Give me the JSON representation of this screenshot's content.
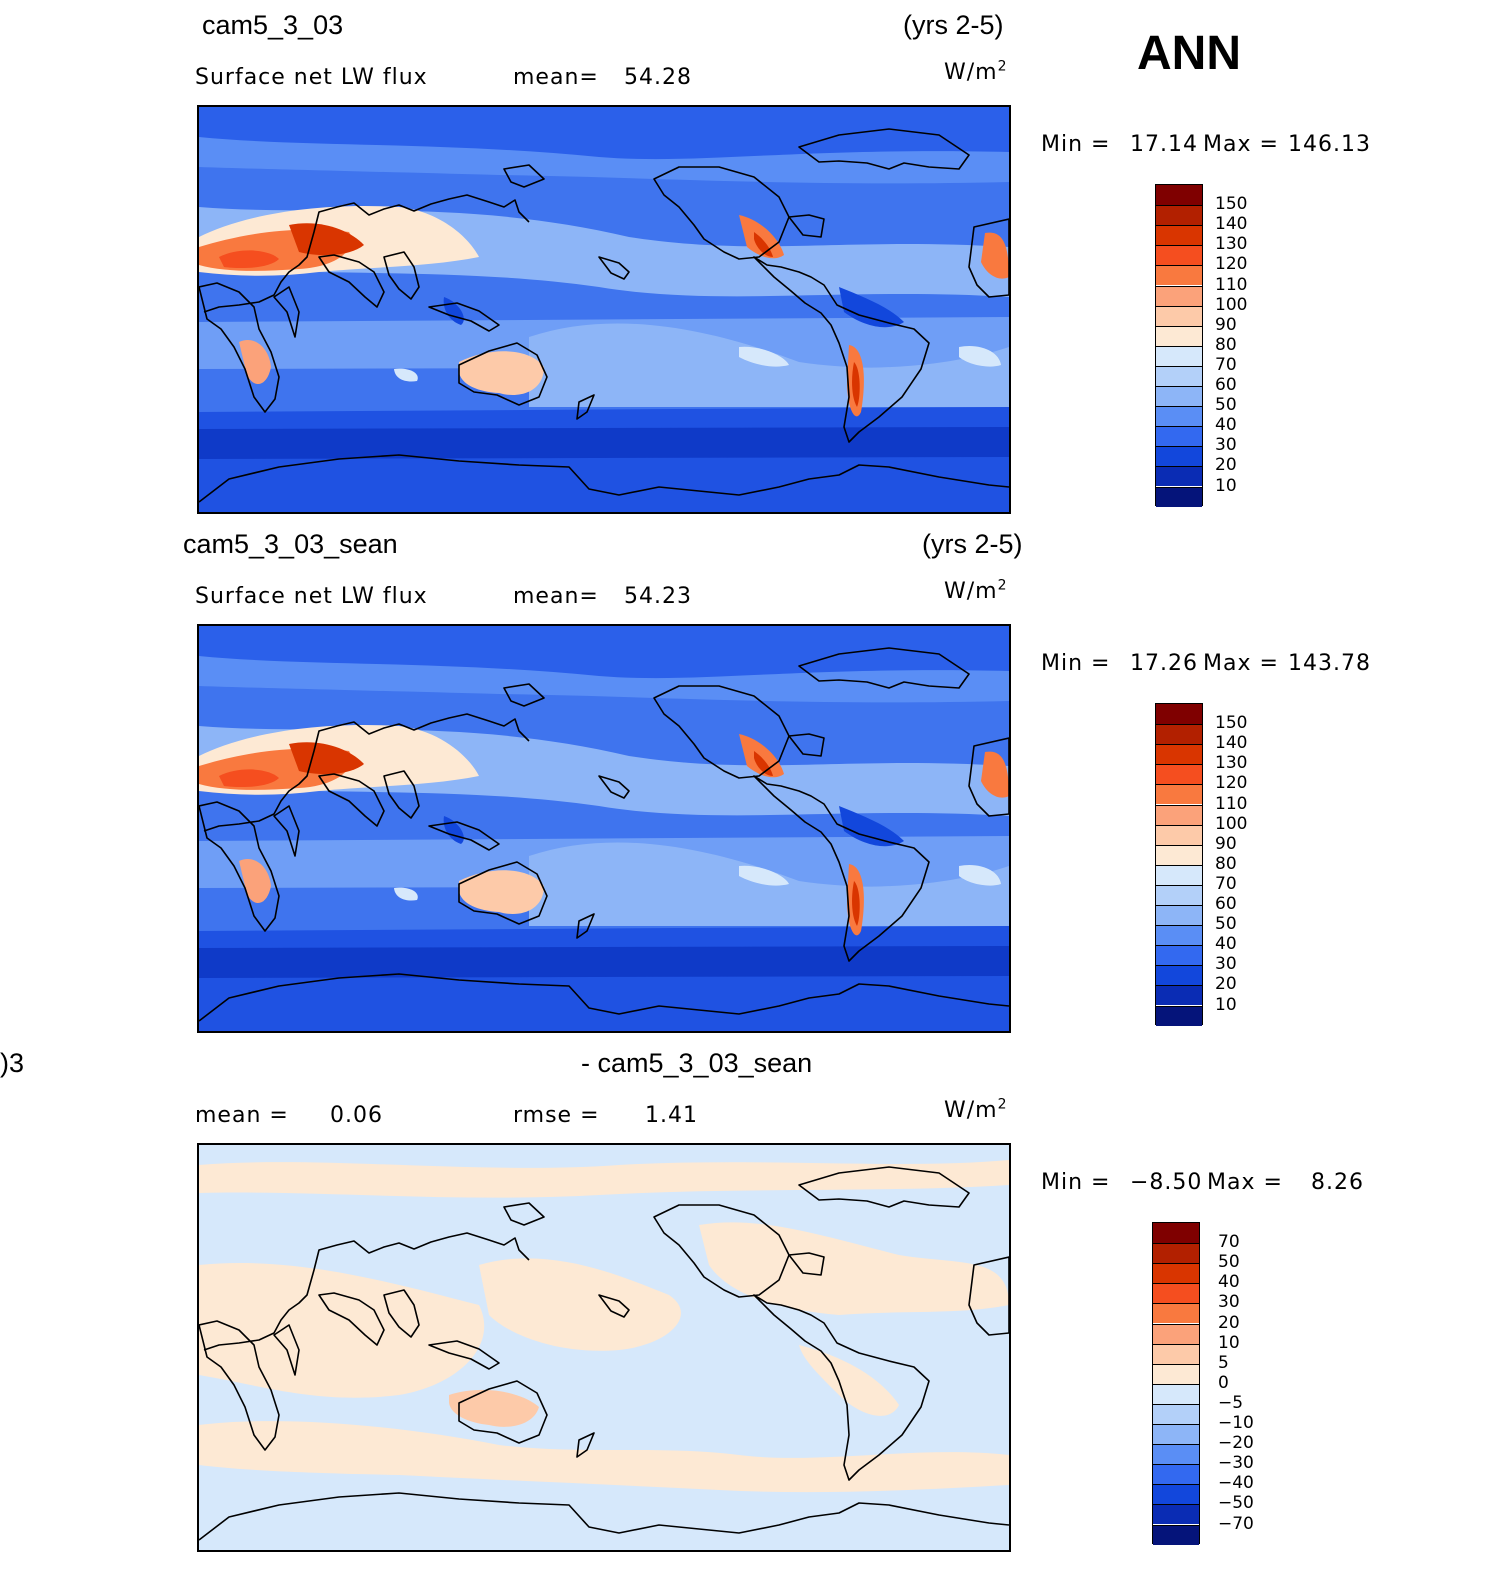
{
  "season": "ANN",
  "panels": [
    {
      "case": "cam5_3_03",
      "years": "(yrs 2-5)",
      "variable": "Surface net LW flux",
      "stat_label": "mean=",
      "stat_value": "54.28",
      "units_base": "W/m",
      "units_exp": "2",
      "min_label": "Min =",
      "min_value": "17.14",
      "max_label": "Max =",
      "max_value": "146.13",
      "colorbar": {
        "labels": [
          "150",
          "140",
          "130",
          "120",
          "110",
          "100",
          "90",
          "80",
          "70",
          "60",
          "50",
          "40",
          "30",
          "20",
          "10"
        ],
        "colors": [
          "#7f0000",
          "#b22000",
          "#d93500",
          "#f54e1f",
          "#f9793f",
          "#fba27a",
          "#fdcaa9",
          "#fde9d4",
          "#d6e8fb",
          "#b3d0f9",
          "#8db5f7",
          "#5a8ef5",
          "#3369f0",
          "#1247dc",
          "#0a2cb4",
          "#05147a"
        ]
      }
    },
    {
      "case": "cam5_3_03_sean",
      "years": "(yrs 2-5)",
      "variable": "Surface net LW flux",
      "stat_label": "mean=",
      "stat_value": "54.23",
      "units_base": "W/m",
      "units_exp": "2",
      "min_label": "Min =",
      "min_value": "17.26",
      "max_label": "Max =",
      "max_value": "143.78",
      "colorbar": {
        "labels": [
          "150",
          "140",
          "130",
          "120",
          "110",
          "100",
          "90",
          "80",
          "70",
          "60",
          "50",
          "40",
          "30",
          "20",
          "10"
        ],
        "colors": [
          "#7f0000",
          "#b22000",
          "#d93500",
          "#f54e1f",
          "#f9793f",
          "#fba27a",
          "#fdcaa9",
          "#fde9d4",
          "#d6e8fb",
          "#b3d0f9",
          "#8db5f7",
          "#5a8ef5",
          "#3369f0",
          "#1247dc",
          "#0a2cb4",
          "#05147a"
        ]
      }
    },
    {
      "case_left": ")3",
      "case": "- cam5_3_03_sean",
      "stat_label": "mean =",
      "stat_value": "0.06",
      "stat2_label": "rmse =",
      "stat2_value": "1.41",
      "units_base": "W/m",
      "units_exp": "2",
      "min_label": "Min =",
      "min_value": "−8.50",
      "max_label": "Max =",
      "max_value": "8.26",
      "colorbar": {
        "labels": [
          "70",
          "50",
          "40",
          "30",
          "20",
          "10",
          "5",
          "0",
          "−5",
          "−10",
          "−20",
          "−30",
          "−40",
          "−50",
          "−70"
        ],
        "colors": [
          "#7f0000",
          "#b22000",
          "#d93500",
          "#f54e1f",
          "#f9793f",
          "#fba27a",
          "#fdcaa9",
          "#fde9d4",
          "#d6e8fb",
          "#b3d0f9",
          "#8db5f7",
          "#5a8ef5",
          "#3369f0",
          "#1247dc",
          "#0a2cb4",
          "#05147a"
        ]
      }
    }
  ]
}
